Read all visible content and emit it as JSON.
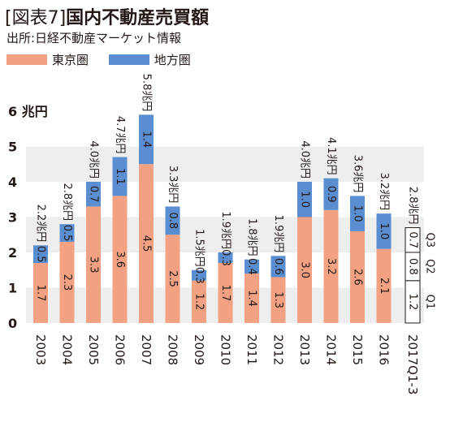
{
  "header": {
    "tag": "[図表7]",
    "title": "国内不動産売買額",
    "source": "出所:日経不動産マーケット情報"
  },
  "colors": {
    "tokyo": "#f2a282",
    "regional": "#5b8ed0",
    "band": "#eeeeee",
    "text": "#231815"
  },
  "chart_data": {
    "type": "bar",
    "stacked": true,
    "orientation": "vertical",
    "unit": "兆円",
    "ylim": [
      0,
      6
    ],
    "yticks": [
      "0",
      "1",
      "2",
      "3",
      "4",
      "5",
      "6"
    ],
    "ytick_top": "6 兆円",
    "grid": "alternating horizontal bands",
    "legend_position": "top-left",
    "categories": [
      "2003",
      "2004",
      "2005",
      "2006",
      "2007",
      "2008",
      "2009",
      "2010",
      "2011",
      "2012",
      "2013",
      "2014",
      "2015",
      "2016"
    ],
    "series": [
      {
        "name": "東京圏",
        "color": "#f2a282",
        "values": [
          1.7,
          2.3,
          3.3,
          3.6,
          4.5,
          2.5,
          1.2,
          1.7,
          1.4,
          1.3,
          3.0,
          3.2,
          2.6,
          2.1
        ],
        "labels": [
          "1.7",
          "2.3",
          "3.3",
          "3.6",
          "4.5",
          "2.5",
          "1.2",
          "1.7",
          "1.4",
          "1.3",
          "3.0",
          "3.2",
          "2.6",
          "2.1"
        ]
      },
      {
        "name": "地方圏",
        "color": "#5b8ed0",
        "values": [
          0.5,
          0.5,
          0.7,
          1.1,
          1.4,
          0.8,
          0.3,
          0.3,
          0.4,
          0.6,
          1.0,
          0.9,
          1.0,
          1.0
        ],
        "labels": [
          "0.5",
          "0.5",
          "0.7",
          "1.1",
          "1.4",
          "0.8",
          "0.3",
          "0.3",
          "0.4",
          "0.6",
          "1.0",
          "0.9",
          "1.0",
          "1.0"
        ]
      }
    ],
    "totals": [
      "2.2兆円",
      "2.8兆円",
      "4.0兆円",
      "4.7兆円",
      "5.8兆円",
      "3.3兆円",
      "1.5兆円",
      "1.9兆円",
      "1.8兆円",
      "1.9兆円",
      "4.0兆円",
      "4.1兆円",
      "3.6兆円",
      "3.2兆円"
    ],
    "quarterly": {
      "category": "2017Q1-3",
      "total": "2.8兆円",
      "segments": [
        {
          "quarter": "Q1",
          "value": 1.2,
          "label": "1.2"
        },
        {
          "quarter": "Q2",
          "value": 0.8,
          "label": "0.8"
        },
        {
          "quarter": "Q3",
          "value": 0.7,
          "label": "0.7"
        }
      ]
    }
  }
}
